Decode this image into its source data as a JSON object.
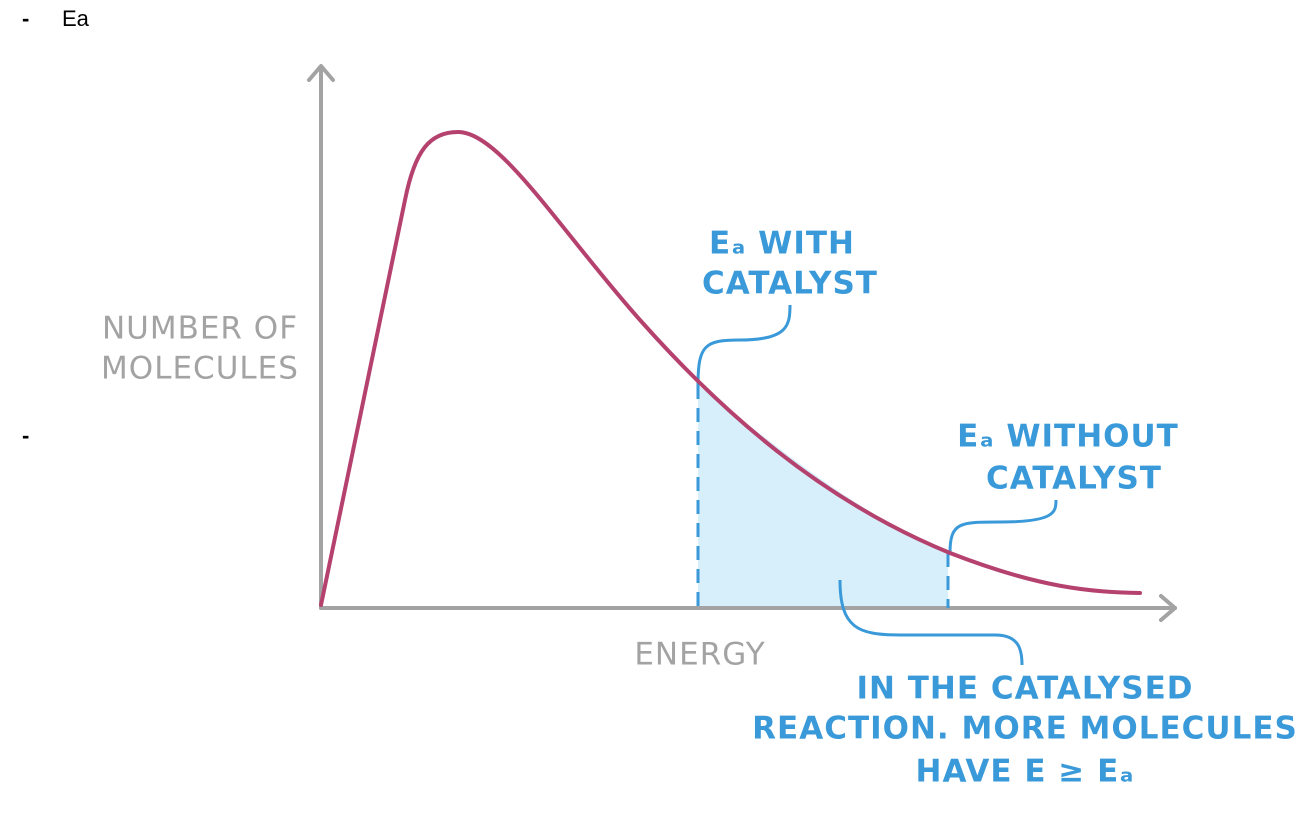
{
  "bullets": [
    "Ea"
  ],
  "diagram": {
    "y_axis_label": [
      "NUMBER OF",
      "MOLECULES"
    ],
    "x_axis_label": "ENERGY",
    "annotations": {
      "with_catalyst": [
        "Eₐ WITH",
        "CATALYST"
      ],
      "without_catalyst": [
        "Eₐ WITHOUT",
        "CATALYST"
      ],
      "note": [
        "IN THE CATALYSED",
        "REACTION. MORE MOLECULES",
        "HAVE E ≥ Eₐ"
      ]
    }
  }
}
